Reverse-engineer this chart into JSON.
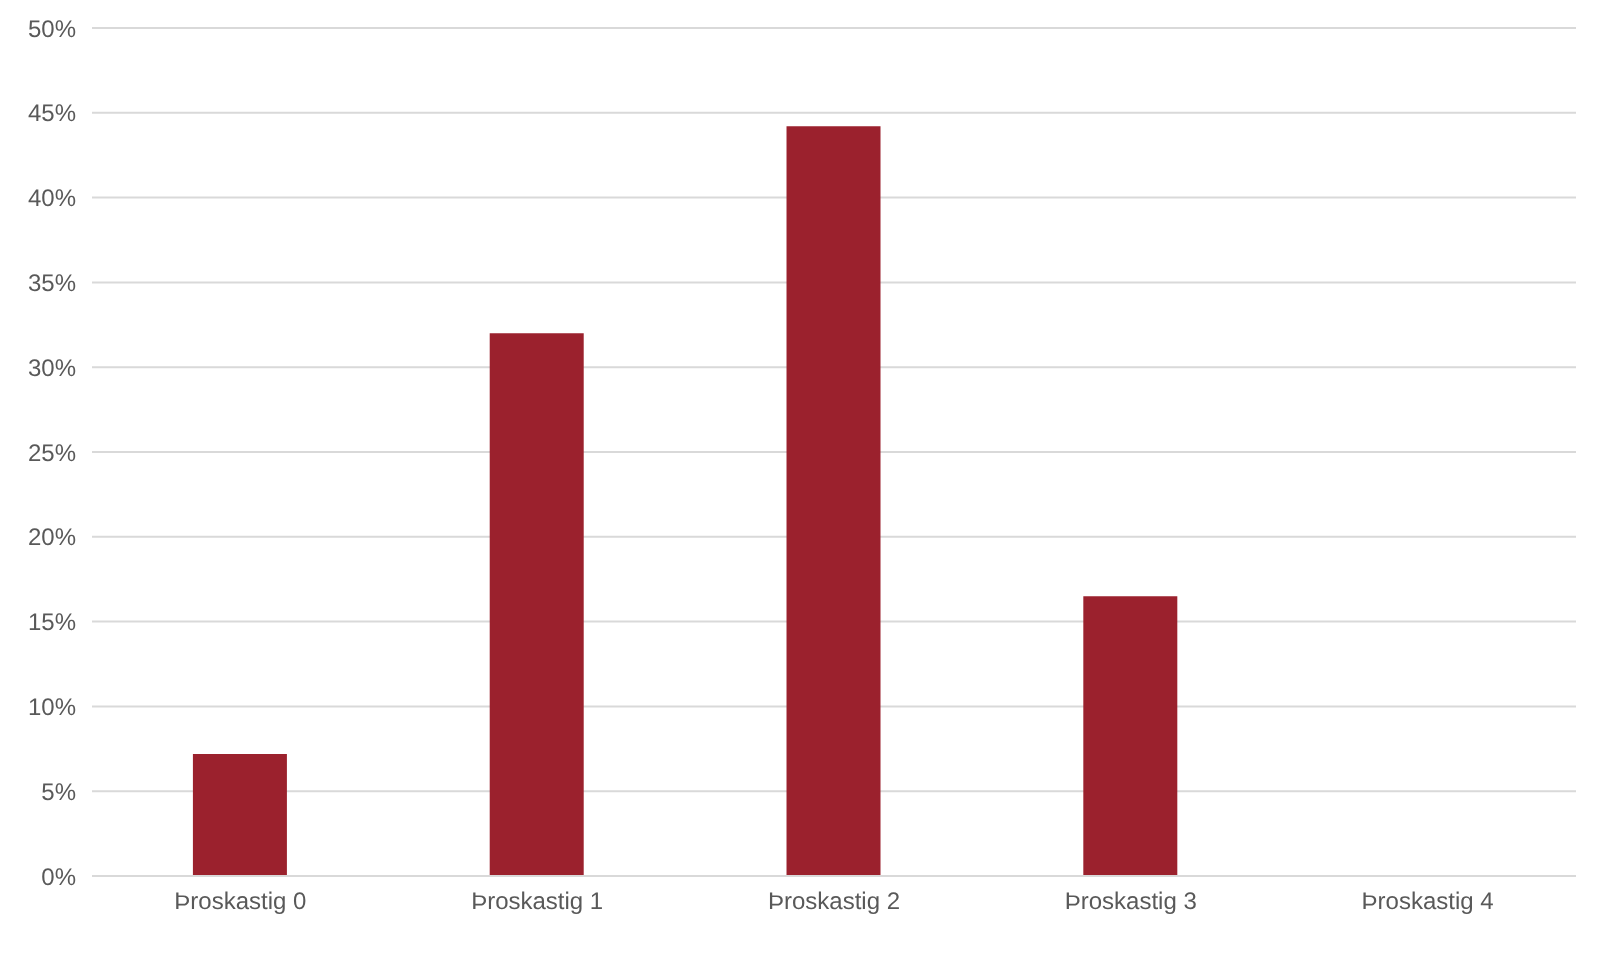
{
  "chart_data": {
    "type": "bar",
    "categories": [
      "Þroskastig 0",
      "Þroskastig 1",
      "Þroskastig 2",
      "Þroskastig 3",
      "Þroskastig 4"
    ],
    "values": [
      7.2,
      32,
      44.2,
      16.5,
      0
    ],
    "color": "#9b212d",
    "ylim": [
      0,
      50
    ],
    "yticks": [
      {
        "value": 0,
        "label": "0%"
      },
      {
        "value": 5,
        "label": "5%"
      },
      {
        "value": 10,
        "label": "10%"
      },
      {
        "value": 15,
        "label": "15%"
      },
      {
        "value": 20,
        "label": "20%"
      },
      {
        "value": 25,
        "label": "25%"
      },
      {
        "value": 30,
        "label": "30%"
      },
      {
        "value": 35,
        "label": "35%"
      },
      {
        "value": 40,
        "label": "40%"
      },
      {
        "value": 45,
        "label": "45%"
      },
      {
        "value": 50,
        "label": "50%"
      }
    ],
    "grid": "y",
    "legend": false
  }
}
